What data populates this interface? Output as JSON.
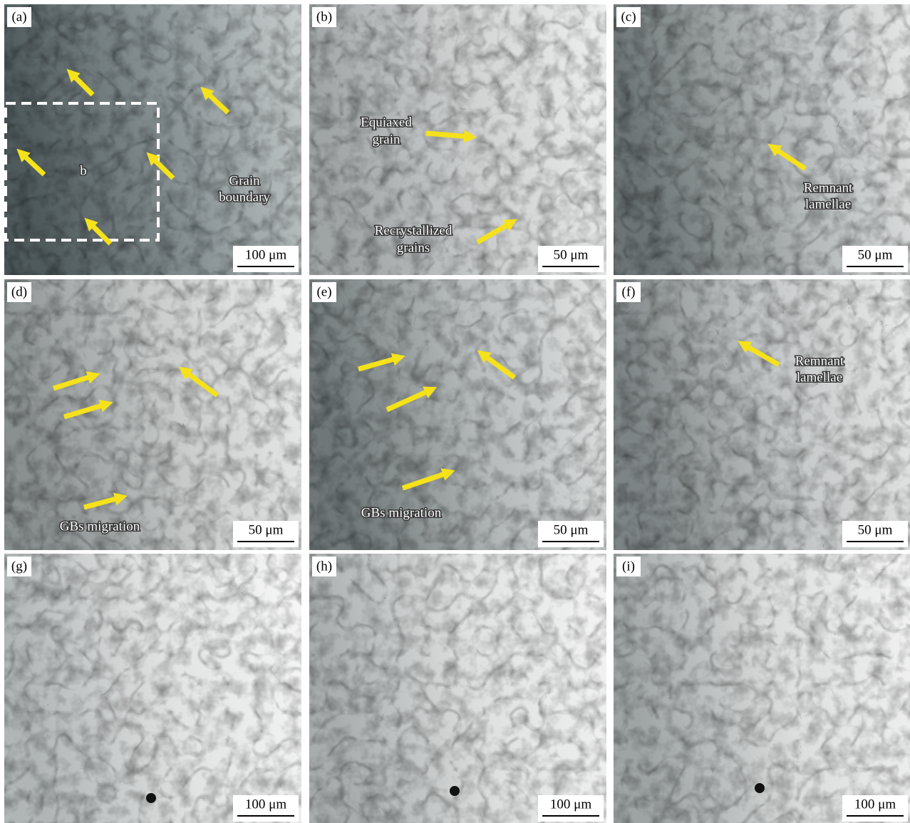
{
  "panels": [
    {
      "label": "(a)",
      "scale_bar": "100 μm",
      "annotations": [
        {
          "lines": [
            "b"
          ]
        },
        {
          "lines": [
            "Grain",
            "boundary"
          ]
        }
      ]
    },
    {
      "label": "(b)",
      "scale_bar": "50 μm",
      "annotations": [
        {
          "lines": [
            "Equiaxed",
            "grain"
          ]
        },
        {
          "lines": [
            "Recrystallized",
            "grains"
          ]
        }
      ]
    },
    {
      "label": "(c)",
      "scale_bar": "50 μm",
      "annotations": [
        {
          "lines": [
            "Remnant",
            "lamellae"
          ]
        }
      ]
    },
    {
      "label": "(d)",
      "scale_bar": "50 μm",
      "annotations": [
        {
          "lines": [
            "GBs migration"
          ]
        }
      ]
    },
    {
      "label": "(e)",
      "scale_bar": "50 μm",
      "annotations": [
        {
          "lines": [
            "GBs migration"
          ]
        }
      ]
    },
    {
      "label": "(f)",
      "scale_bar": "50 μm",
      "annotations": [
        {
          "lines": [
            "Remnant",
            "lamellae"
          ]
        }
      ]
    },
    {
      "label": "(g)",
      "scale_bar": "100 μm",
      "annotations": []
    },
    {
      "label": "(h)",
      "scale_bar": "100 μm",
      "annotations": []
    },
    {
      "label": "(i)",
      "scale_bar": "100 μm",
      "annotations": []
    }
  ]
}
